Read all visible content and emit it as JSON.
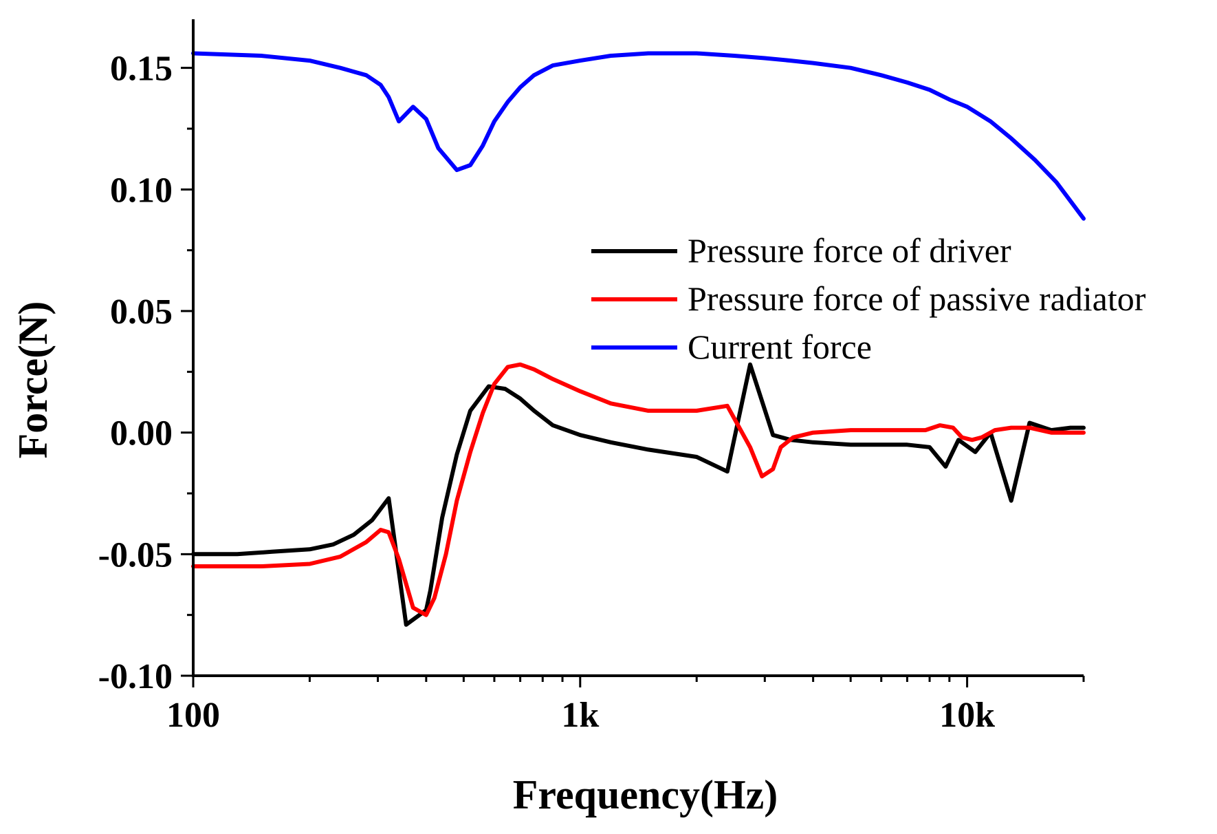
{
  "chart_data": {
    "type": "line",
    "title": "",
    "xlabel": "Frequency(Hz)",
    "ylabel": "Force(N)",
    "xscale": "log",
    "xlim": [
      100,
      20000
    ],
    "ylim": [
      -0.1,
      0.17
    ],
    "grid": false,
    "legend_position": "right",
    "x_ticks": [
      {
        "value": 100,
        "label": "100"
      },
      {
        "value": 1000,
        "label": "1k"
      },
      {
        "value": 10000,
        "label": "10k"
      }
    ],
    "y_ticks": [
      {
        "value": -0.1,
        "label": "-0.10"
      },
      {
        "value": -0.05,
        "label": "-0.05"
      },
      {
        "value": 0.0,
        "label": "0.00"
      },
      {
        "value": 0.05,
        "label": "0.05"
      },
      {
        "value": 0.1,
        "label": "0.10"
      },
      {
        "value": 0.15,
        "label": "0.15"
      }
    ],
    "series": [
      {
        "name": "Pressure force of driver",
        "color": "#000000",
        "x": [
          100,
          130,
          160,
          200,
          230,
          260,
          290,
          320,
          355,
          400,
          410,
          440,
          480,
          520,
          580,
          640,
          700,
          760,
          850,
          1000,
          1200,
          1500,
          2000,
          2400,
          2750,
          3150,
          3500,
          4000,
          5000,
          6000,
          7000,
          8000,
          8800,
          9500,
          10500,
          11500,
          13000,
          14500,
          16500,
          18500,
          20000
        ],
        "y": [
          -0.05,
          -0.05,
          -0.049,
          -0.048,
          -0.046,
          -0.042,
          -0.036,
          -0.027,
          -0.079,
          -0.073,
          -0.065,
          -0.035,
          -0.009,
          0.009,
          0.019,
          0.018,
          0.014,
          0.009,
          0.003,
          -0.001,
          -0.004,
          -0.007,
          -0.01,
          -0.016,
          0.028,
          -0.001,
          -0.003,
          -0.004,
          -0.005,
          -0.005,
          -0.005,
          -0.006,
          -0.014,
          -0.003,
          -0.008,
          0.0,
          -0.028,
          0.004,
          0.001,
          0.002,
          0.002
        ]
      },
      {
        "name": "Pressure force of passive radiator",
        "color": "#ff0000",
        "x": [
          100,
          150,
          200,
          240,
          280,
          305,
          320,
          340,
          370,
          400,
          420,
          450,
          480,
          520,
          560,
          600,
          650,
          700,
          760,
          850,
          1000,
          1200,
          1500,
          2000,
          2400,
          2750,
          2950,
          3150,
          3300,
          3550,
          4000,
          5000,
          6500,
          7800,
          8500,
          9200,
          9700,
          10300,
          10900,
          11800,
          13000,
          14500,
          16500,
          18500,
          20000
        ],
        "y": [
          -0.055,
          -0.055,
          -0.054,
          -0.051,
          -0.045,
          -0.04,
          -0.041,
          -0.052,
          -0.072,
          -0.075,
          -0.068,
          -0.05,
          -0.028,
          -0.008,
          0.008,
          0.02,
          0.027,
          0.028,
          0.026,
          0.022,
          0.017,
          0.012,
          0.009,
          0.009,
          0.011,
          -0.006,
          -0.018,
          -0.015,
          -0.006,
          -0.002,
          0.0,
          0.001,
          0.001,
          0.001,
          0.003,
          0.002,
          -0.002,
          -0.003,
          -0.002,
          0.001,
          0.002,
          0.002,
          0.0,
          0.0,
          0.0
        ]
      },
      {
        "name": "Current force",
        "color": "#0000ff",
        "x": [
          100,
          150,
          200,
          240,
          280,
          305,
          320,
          340,
          370,
          400,
          430,
          480,
          520,
          560,
          600,
          650,
          700,
          760,
          850,
          1000,
          1200,
          1500,
          2000,
          2500,
          3000,
          3500,
          4000,
          5000,
          6000,
          7000,
          8000,
          9000,
          10000,
          11500,
          13000,
          15000,
          17000,
          20000
        ],
        "y": [
          0.156,
          0.155,
          0.153,
          0.15,
          0.147,
          0.143,
          0.138,
          0.128,
          0.134,
          0.129,
          0.117,
          0.108,
          0.11,
          0.118,
          0.128,
          0.136,
          0.142,
          0.147,
          0.151,
          0.153,
          0.155,
          0.156,
          0.156,
          0.155,
          0.154,
          0.153,
          0.152,
          0.15,
          0.147,
          0.144,
          0.141,
          0.137,
          0.134,
          0.128,
          0.121,
          0.112,
          0.103,
          0.088
        ]
      }
    ]
  }
}
